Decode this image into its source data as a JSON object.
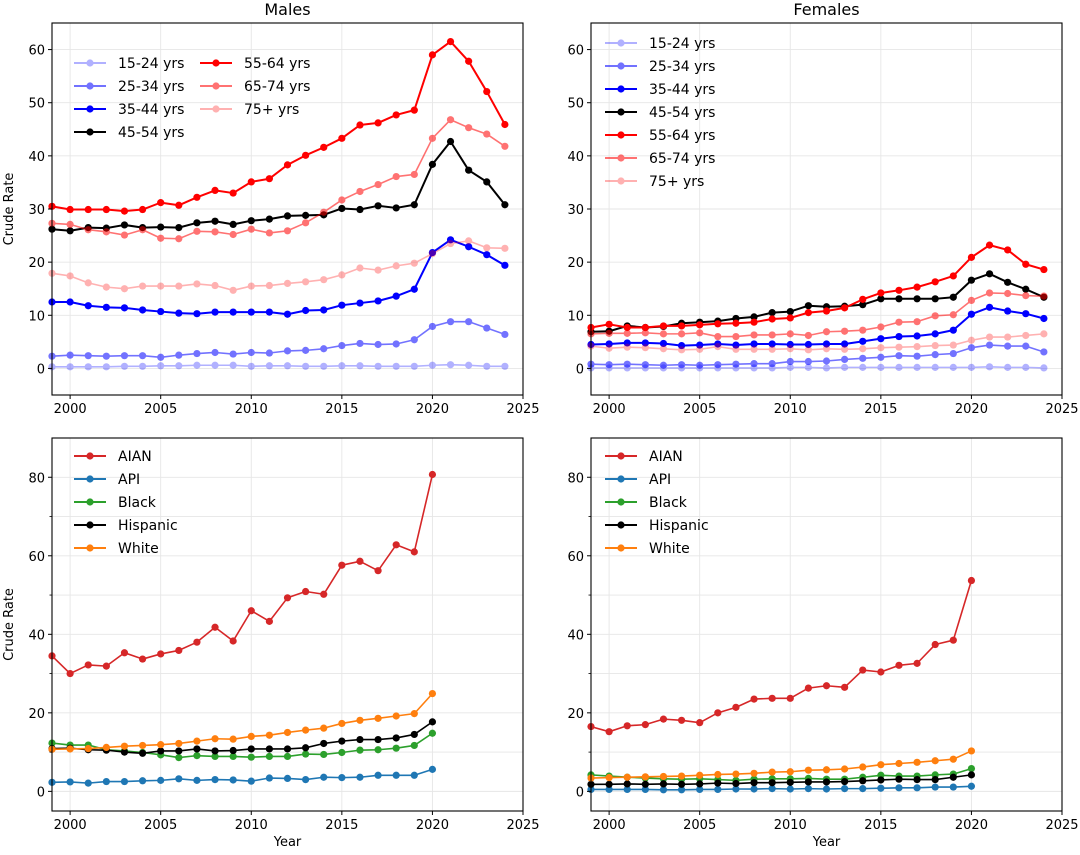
{
  "chart_data": [
    {
      "type": "line",
      "panel": "top-left",
      "title": "Males",
      "xlabel": "",
      "ylabel": "Crude Rate",
      "xlim": [
        1999,
        2025
      ],
      "ylim": [
        -5,
        65
      ],
      "xticks": [
        2000,
        2005,
        2010,
        2015,
        2020,
        2025
      ],
      "yticks": [
        0,
        10,
        20,
        30,
        40,
        50,
        60
      ],
      "grid": true,
      "legend": {
        "placement": "top-left",
        "columns": 2
      },
      "x": [
        1999,
        2000,
        2001,
        2002,
        2003,
        2004,
        2005,
        2006,
        2007,
        2008,
        2009,
        2010,
        2011,
        2012,
        2013,
        2014,
        2015,
        2016,
        2017,
        2018,
        2019,
        2020,
        2021,
        2022,
        2023,
        2024
      ],
      "series": [
        {
          "name": "15-24 yrs",
          "color": "#0000ff",
          "opacity": 0.3,
          "values": [
            0.3,
            0.3,
            0.3,
            0.3,
            0.4,
            0.4,
            0.5,
            0.5,
            0.6,
            0.6,
            0.6,
            0.4,
            0.5,
            0.5,
            0.4,
            0.4,
            0.5,
            0.5,
            0.4,
            0.4,
            0.4,
            0.6,
            0.7,
            0.6,
            0.4,
            0.4
          ]
        },
        {
          "name": "25-34 yrs",
          "color": "#0000ff",
          "opacity": 0.55,
          "values": [
            2.3,
            2.5,
            2.4,
            2.3,
            2.4,
            2.4,
            2.1,
            2.5,
            2.8,
            3.0,
            2.7,
            3.0,
            2.9,
            3.3,
            3.4,
            3.7,
            4.3,
            4.7,
            4.5,
            4.6,
            5.4,
            7.9,
            8.8,
            8.8,
            7.6,
            6.4
          ]
        },
        {
          "name": "35-44 yrs",
          "color": "#0000ff",
          "opacity": 1.0,
          "values": [
            12.5,
            12.5,
            11.8,
            11.5,
            11.4,
            11.0,
            10.7,
            10.4,
            10.3,
            10.6,
            10.6,
            10.6,
            10.6,
            10.2,
            10.9,
            11.0,
            11.9,
            12.3,
            12.7,
            13.6,
            14.9,
            21.8,
            24.2,
            22.9,
            21.4,
            19.4
          ]
        },
        {
          "name": "45-54 yrs",
          "color": "#000000",
          "opacity": 1.0,
          "values": [
            26.2,
            25.9,
            26.5,
            26.4,
            27.0,
            26.5,
            26.6,
            26.5,
            27.4,
            27.7,
            27.1,
            27.8,
            28.1,
            28.7,
            28.8,
            28.9,
            30.1,
            29.9,
            30.6,
            30.2,
            30.8,
            38.4,
            42.7,
            37.3,
            35.1,
            30.8
          ]
        },
        {
          "name": "55-64 yrs",
          "color": "#ff0000",
          "opacity": 1.0,
          "values": [
            30.5,
            29.9,
            29.9,
            29.9,
            29.6,
            29.9,
            31.2,
            30.7,
            32.2,
            33.5,
            33.0,
            35.1,
            35.7,
            38.3,
            40.1,
            41.6,
            43.3,
            45.8,
            46.2,
            47.7,
            48.6,
            59.0,
            61.5,
            57.8,
            52.1,
            45.9
          ]
        },
        {
          "name": "65-74 yrs",
          "color": "#ff0000",
          "opacity": 0.55,
          "values": [
            27.3,
            27.1,
            26.1,
            25.7,
            25.1,
            26.1,
            24.5,
            24.4,
            25.8,
            25.7,
            25.2,
            26.2,
            25.5,
            25.9,
            27.4,
            29.4,
            31.7,
            33.3,
            34.6,
            36.1,
            36.5,
            43.3,
            46.8,
            45.3,
            44.1,
            41.8
          ]
        },
        {
          "name": "75+ yrs",
          "color": "#ff0000",
          "opacity": 0.3,
          "values": [
            17.9,
            17.4,
            16.1,
            15.3,
            15.0,
            15.5,
            15.5,
            15.5,
            15.9,
            15.6,
            14.7,
            15.5,
            15.6,
            16.0,
            16.3,
            16.7,
            17.6,
            18.9,
            18.5,
            19.3,
            19.8,
            21.6,
            23.5,
            24.0,
            22.7,
            22.6
          ]
        }
      ]
    },
    {
      "type": "line",
      "panel": "top-right",
      "title": "Females",
      "xlabel": "",
      "ylabel": "",
      "xlim": [
        1999,
        2025
      ],
      "ylim": [
        -5,
        65
      ],
      "xticks": [
        2000,
        2005,
        2010,
        2015,
        2020,
        2025
      ],
      "yticks": [
        0,
        10,
        20,
        30,
        40,
        50,
        60
      ],
      "grid": true,
      "legend": {
        "placement": "top-left",
        "columns": 1
      },
      "x": [
        1999,
        2000,
        2001,
        2002,
        2003,
        2004,
        2005,
        2006,
        2007,
        2008,
        2009,
        2010,
        2011,
        2012,
        2013,
        2014,
        2015,
        2016,
        2017,
        2018,
        2019,
        2020,
        2021,
        2022,
        2023,
        2024
      ],
      "series": [
        {
          "name": "15-24 yrs",
          "color": "#0000ff",
          "opacity": 0.3,
          "values": [
            0.1,
            0.1,
            0.1,
            0.1,
            0.1,
            0.1,
            0.1,
            0.1,
            0.1,
            0.1,
            0.1,
            0.2,
            0.2,
            0.1,
            0.2,
            0.2,
            0.2,
            0.2,
            0.2,
            0.2,
            0.2,
            0.2,
            0.3,
            0.2,
            0.2,
            0.1
          ]
        },
        {
          "name": "25-34 yrs",
          "color": "#0000ff",
          "opacity": 0.55,
          "values": [
            0.8,
            0.7,
            0.8,
            0.7,
            0.6,
            0.7,
            0.6,
            0.7,
            0.8,
            0.9,
            0.9,
            1.3,
            1.3,
            1.4,
            1.7,
            1.9,
            2.1,
            2.4,
            2.3,
            2.6,
            2.8,
            3.9,
            4.4,
            4.2,
            4.2,
            3.1
          ]
        },
        {
          "name": "35-44 yrs",
          "color": "#0000ff",
          "opacity": 1.0,
          "values": [
            4.5,
            4.6,
            4.8,
            4.8,
            4.7,
            4.3,
            4.4,
            4.6,
            4.4,
            4.6,
            4.6,
            4.5,
            4.5,
            4.6,
            4.6,
            5.1,
            5.6,
            6.0,
            6.1,
            6.5,
            7.2,
            10.2,
            11.5,
            10.8,
            10.3,
            9.4
          ]
        },
        {
          "name": "45-54 yrs",
          "color": "#000000",
          "opacity": 1.0,
          "values": [
            6.9,
            7.0,
            8.0,
            7.7,
            7.9,
            8.5,
            8.7,
            8.9,
            9.4,
            9.7,
            10.5,
            10.7,
            11.8,
            11.6,
            11.7,
            12.0,
            13.1,
            13.1,
            13.1,
            13.1,
            13.4,
            16.6,
            17.8,
            16.2,
            14.9,
            13.4
          ]
        },
        {
          "name": "55-64 yrs",
          "color": "#ff0000",
          "opacity": 1.0,
          "values": [
            7.7,
            8.3,
            7.7,
            7.7,
            8.0,
            8.0,
            8.2,
            8.4,
            8.5,
            8.7,
            9.3,
            9.5,
            10.5,
            10.8,
            11.4,
            13.0,
            14.2,
            14.7,
            15.3,
            16.3,
            17.4,
            20.9,
            23.2,
            22.3,
            19.6,
            18.6
          ]
        },
        {
          "name": "65-74 yrs",
          "color": "#ff0000",
          "opacity": 0.55,
          "values": [
            6.5,
            6.6,
            6.6,
            6.7,
            6.5,
            6.5,
            6.7,
            6.0,
            6.0,
            6.3,
            6.3,
            6.5,
            6.2,
            6.9,
            7.0,
            7.2,
            7.8,
            8.7,
            8.8,
            9.9,
            10.1,
            12.8,
            14.2,
            14.1,
            13.7,
            13.6
          ]
        },
        {
          "name": "75+ yrs",
          "color": "#ff0000",
          "opacity": 0.3,
          "values": [
            4.2,
            3.8,
            4.0,
            3.9,
            3.7,
            3.5,
            3.6,
            4.1,
            3.6,
            3.6,
            3.6,
            3.7,
            3.5,
            3.7,
            3.6,
            3.7,
            3.9,
            4.0,
            4.1,
            4.3,
            4.4,
            5.3,
            5.9,
            5.9,
            6.2,
            6.5
          ]
        }
      ]
    },
    {
      "type": "line",
      "panel": "bottom-left",
      "title": "",
      "xlabel": "Year",
      "ylabel": "Crude Rate",
      "xlim": [
        1999,
        2025
      ],
      "ylim": [
        -5,
        90
      ],
      "xticks": [
        2000,
        2005,
        2010,
        2015,
        2020,
        2025
      ],
      "yticks": [
        0,
        20,
        40,
        60,
        80
      ],
      "minor_yticks": [
        10,
        30,
        50,
        70
      ],
      "grid": true,
      "legend": {
        "placement": "top-left",
        "columns": 1
      },
      "x": [
        1999,
        2000,
        2001,
        2002,
        2003,
        2004,
        2005,
        2006,
        2007,
        2008,
        2009,
        2010,
        2011,
        2012,
        2013,
        2014,
        2015,
        2016,
        2017,
        2018,
        2019,
        2020
      ],
      "series": [
        {
          "name": "AIAN",
          "color": "#d62728",
          "values": [
            34.5,
            30.0,
            32.2,
            31.9,
            35.3,
            33.7,
            35.0,
            35.9,
            38.0,
            41.8,
            38.3,
            46.0,
            43.3,
            49.3,
            50.9,
            50.2,
            57.6,
            58.6,
            56.2,
            62.8,
            61.0,
            80.7
          ]
        },
        {
          "name": "API",
          "color": "#1f77b4",
          "values": [
            2.3,
            2.4,
            2.1,
            2.5,
            2.5,
            2.7,
            2.8,
            3.2,
            2.8,
            3.0,
            2.9,
            2.6,
            3.4,
            3.3,
            3.0,
            3.6,
            3.5,
            3.6,
            4.1,
            4.1,
            4.1,
            5.6
          ]
        },
        {
          "name": "Black",
          "color": "#2ca02c",
          "values": [
            12.3,
            11.8,
            11.8,
            10.6,
            10.3,
            9.9,
            9.3,
            8.6,
            9.1,
            8.9,
            8.9,
            8.7,
            8.9,
            8.9,
            9.5,
            9.4,
            9.9,
            10.5,
            10.6,
            11.0,
            11.7,
            14.8
          ]
        },
        {
          "name": "Hispanic",
          "color": "#000000",
          "values": [
            10.9,
            11.0,
            10.6,
            10.5,
            10.0,
            9.7,
            10.3,
            10.3,
            10.8,
            10.3,
            10.4,
            10.8,
            10.8,
            10.8,
            11.1,
            12.2,
            12.8,
            13.2,
            13.2,
            13.6,
            14.5,
            17.7
          ]
        },
        {
          "name": "White",
          "color": "#ff7f0e",
          "values": [
            10.7,
            10.8,
            10.9,
            11.2,
            11.5,
            11.7,
            11.9,
            12.2,
            12.8,
            13.4,
            13.3,
            14.0,
            14.3,
            15.0,
            15.6,
            16.1,
            17.3,
            18.1,
            18.6,
            19.2,
            19.8,
            24.9
          ]
        }
      ]
    },
    {
      "type": "line",
      "panel": "bottom-right",
      "title": "",
      "xlabel": "Year",
      "ylabel": "",
      "xlim": [
        1999,
        2025
      ],
      "ylim": [
        -5,
        90
      ],
      "xticks": [
        2000,
        2005,
        2010,
        2015,
        2020,
        2025
      ],
      "yticks": [
        0,
        20,
        40,
        60,
        80
      ],
      "minor_yticks": [
        10,
        30,
        50,
        70
      ],
      "grid": true,
      "legend": {
        "placement": "top-left",
        "columns": 1
      },
      "x": [
        1999,
        2000,
        2001,
        2002,
        2003,
        2004,
        2005,
        2006,
        2007,
        2008,
        2009,
        2010,
        2011,
        2012,
        2013,
        2014,
        2015,
        2016,
        2017,
        2018,
        2019,
        2020
      ],
      "series": [
        {
          "name": "AIAN",
          "color": "#d62728",
          "values": [
            16.5,
            15.2,
            16.7,
            17.0,
            18.4,
            18.1,
            17.5,
            20.0,
            21.4,
            23.5,
            23.7,
            23.7,
            26.3,
            26.9,
            26.5,
            30.9,
            30.4,
            32.1,
            32.6,
            37.4,
            38.5,
            53.7
          ]
        },
        {
          "name": "API",
          "color": "#1f77b4",
          "values": [
            0.5,
            0.5,
            0.5,
            0.5,
            0.4,
            0.4,
            0.5,
            0.5,
            0.6,
            0.6,
            0.7,
            0.6,
            0.7,
            0.6,
            0.7,
            0.7,
            0.8,
            0.9,
            0.9,
            1.1,
            1.1,
            1.3
          ]
        },
        {
          "name": "Black",
          "color": "#2ca02c",
          "values": [
            4.2,
            3.9,
            3.6,
            3.4,
            3.2,
            3.1,
            3.2,
            3.0,
            2.8,
            3.1,
            3.2,
            3.2,
            3.3,
            3.1,
            3.1,
            3.6,
            4.1,
            3.9,
            3.9,
            4.2,
            4.4,
            5.8
          ]
        },
        {
          "name": "Hispanic",
          "color": "#000000",
          "values": [
            1.8,
            1.8,
            1.9,
            1.8,
            1.9,
            1.8,
            1.9,
            2.1,
            2.0,
            2.2,
            2.2,
            2.3,
            2.4,
            2.4,
            2.5,
            2.7,
            2.9,
            3.1,
            3.0,
            3.0,
            3.6,
            4.2
          ]
        },
        {
          "name": "White",
          "color": "#ff7f0e",
          "values": [
            3.4,
            3.5,
            3.6,
            3.7,
            3.8,
            3.9,
            4.1,
            4.3,
            4.4,
            4.6,
            4.9,
            5.0,
            5.4,
            5.5,
            5.7,
            6.2,
            6.8,
            7.1,
            7.4,
            7.8,
            8.2,
            10.3
          ]
        }
      ]
    }
  ]
}
